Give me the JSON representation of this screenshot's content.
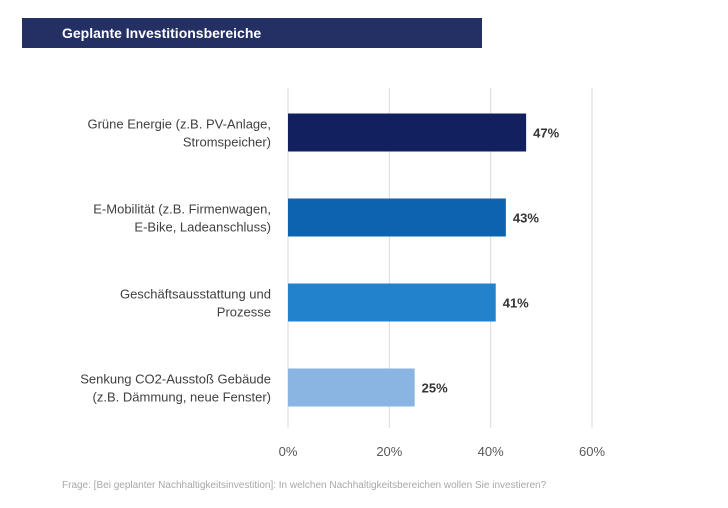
{
  "header": {
    "title": "Geplante Investitionsbereiche"
  },
  "chart_data": {
    "type": "bar",
    "orientation": "horizontal",
    "categories": [
      [
        "Grüne Energie (z.B. PV-Anlage,",
        "Stromspeicher)"
      ],
      [
        "E-Mobilität (z.B. Firmenwagen,",
        "E-Bike, Ladeanschluss)"
      ],
      [
        "Geschäftsausstattung und",
        "Prozesse"
      ],
      [
        "Senkung CO2-Ausstoß Gebäude",
        "(z.B. Dämmung, neue Fenster)"
      ]
    ],
    "values": [
      47,
      43,
      41,
      25
    ],
    "data_labels": [
      "47%",
      "43%",
      "41%",
      "25%"
    ],
    "colors": [
      "#13205f",
      "#0c64b0",
      "#2282cc",
      "#8ab4e2"
    ],
    "xlim": [
      0,
      60
    ],
    "xticks": [
      0,
      20,
      40,
      60
    ],
    "xtick_labels": [
      "0%",
      "20%",
      "40%",
      "60%"
    ],
    "grid": true,
    "title": "",
    "xlabel": "",
    "ylabel": ""
  },
  "footnote": "Frage: [Bei geplanter Nachhaltigkeitsinvestition]: In welchen Nachhaltigkeitsbereichen wollen Sie investieren?"
}
